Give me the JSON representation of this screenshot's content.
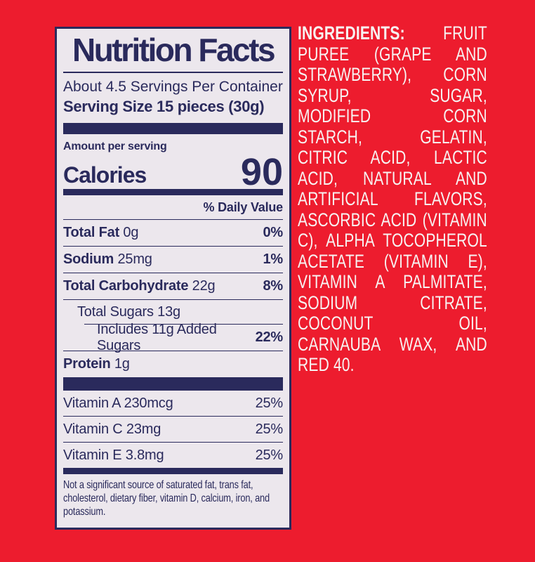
{
  "colors": {
    "background": "#ed1c2e",
    "navy": "#2a2a5c",
    "panel_bg": "#ece7ed",
    "ingredients_text": "#f7f3f2"
  },
  "label": {
    "title": "Nutrition Facts",
    "servings_per_container": "About 4.5 Servings Per Container",
    "serving_size": "Serving Size 15 pieces (30g)",
    "amount_per_serving": "Amount per serving",
    "calories_label": "Calories",
    "calories_value": "90",
    "daily_value_header": "% Daily Value",
    "rows": [
      {
        "name": "Total Fat",
        "amount": "0g",
        "dv": "0%"
      },
      {
        "name": "Sodium",
        "amount": "25mg",
        "dv": "1%"
      },
      {
        "name": "Total Carbohydrate",
        "amount": "22g",
        "dv": "8%"
      },
      {
        "name": "Total Sugars",
        "amount": "13g",
        "dv": ""
      },
      {
        "name": "Includes 11g Added Sugars",
        "amount": "",
        "dv": "22%"
      },
      {
        "name": "Protein",
        "amount": "1g",
        "dv": ""
      }
    ],
    "vitamins": [
      {
        "name": "Vitamin A",
        "amount": "230mcg",
        "dv": "25%"
      },
      {
        "name": "Vitamin C",
        "amount": "23mg",
        "dv": "25%"
      },
      {
        "name": "Vitamin E",
        "amount": "3.8mg",
        "dv": "25%"
      }
    ],
    "footnote": "Not a significant source of saturated fat, trans fat, cholesterol, dietary fiber, vitamin D, calcium, iron, and potassium."
  },
  "ingredients": {
    "label": "INGREDIENTS:",
    "text": "FRUIT PUREE (GRAPE AND STRAWBERRY), CORN SYRUP, SUGAR, MODIFIED CORN STARCH, GELATIN, CITRIC ACID, LACTIC ACID, NATURAL AND ARTIFICIAL FLAVORS, ASCORBIC ACID (VITAMIN C), ALPHA TOCOPHEROL ACETATE (VITAMIN E), VITAMIN A PALMITATE, SODIUM CITRATE, COCONUT OIL, CARNAUBA WAX, AND RED 40."
  }
}
